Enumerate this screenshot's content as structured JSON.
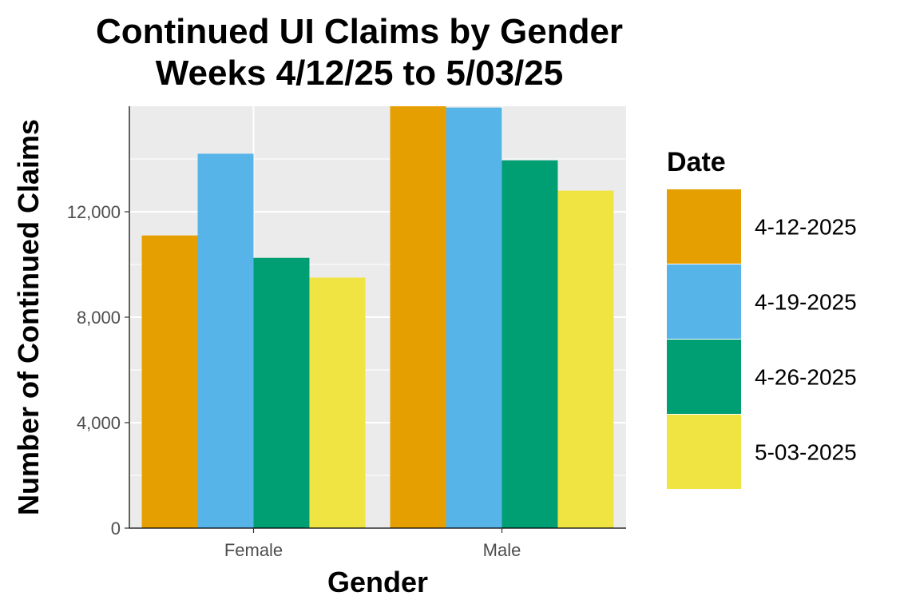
{
  "chart_data": {
    "type": "bar",
    "title_line1": "Continued UI Claims by Gender",
    "title_line2": "Weeks 4/12/25 to 5/03/25",
    "xlabel": "Gender",
    "ylabel": "Number of Continued Claims",
    "categories": [
      "Female",
      "Male"
    ],
    "yticks": [
      0,
      4000,
      8000,
      12000
    ],
    "ytick_labels": [
      "0",
      "4,000",
      "8,000",
      "12,000"
    ],
    "ylim": [
      0,
      16000
    ],
    "grid": true,
    "legend": {
      "title": "Date",
      "placement": "right"
    },
    "series": [
      {
        "name": "4-12-2025",
        "color": "#E69F00",
        "values": [
          11100,
          16000
        ]
      },
      {
        "name": "4-19-2025",
        "color": "#56B4E9",
        "values": [
          14200,
          15950
        ]
      },
      {
        "name": "4-26-2025",
        "color": "#009E73",
        "values": [
          10250,
          13950
        ]
      },
      {
        "name": "5-03-2025",
        "color": "#F0E442",
        "values": [
          9500,
          12800
        ]
      }
    ]
  }
}
